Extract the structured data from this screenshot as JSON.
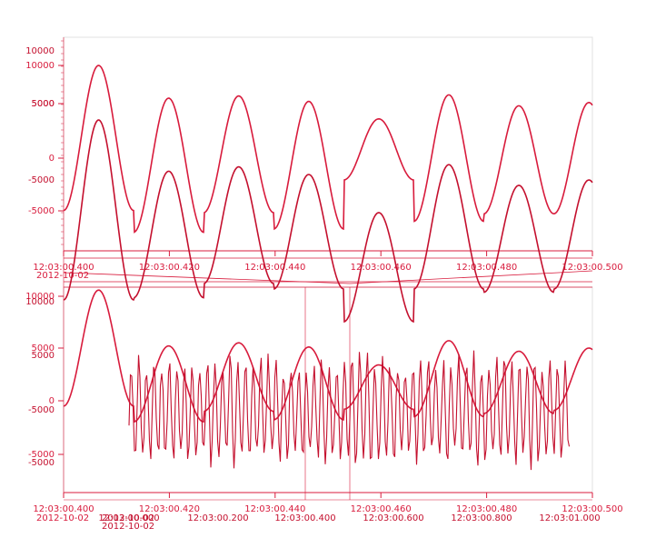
{
  "colors": {
    "primary": "#d81b3c",
    "secondary": "#c4102e",
    "frame": "#e0e0e0"
  },
  "chart_data": [
    {
      "type": "line",
      "x_unit": "time",
      "date_label": "2012-10-02",
      "xlim": [
        "12:03:00.400",
        "12:03:00.500"
      ],
      "x_ticks": [
        "12:03:00.400",
        "12:03:00.420",
        "12:03:00.440",
        "12:03:00.460",
        "12:03:00.480",
        "12:03:00.500"
      ],
      "y_ticks": [
        "10000",
        "5000",
        "0",
        "-5000"
      ],
      "y_ticks_secondary": [
        "10000",
        "5000",
        "-5000"
      ],
      "ylim": [
        -9000,
        11000
      ],
      "series": [
        {
          "role": "upper",
          "peaks": [
            8500,
            5500,
            5700,
            5200,
            3600,
            5800,
            4800,
            5100
          ],
          "troughs": [
            -4800,
            -6800,
            -5000,
            -6500,
            -2000,
            -5800,
            -5100,
            -5100
          ]
        },
        {
          "role": "lower",
          "peaks": [
            3500,
            -1200,
            -800,
            -1500,
            -5000,
            -600,
            -2500,
            -2000
          ],
          "troughs": [
            -13000,
            -12800,
            -11500,
            -12000,
            -15000,
            -12000,
            -12300,
            -12000
          ]
        }
      ]
    },
    {
      "type": "line",
      "x_unit": "time",
      "date_label": "2012-10-02",
      "xlim": [
        "12:03:00.400",
        "12:03:00.500"
      ],
      "x_ticks_primary": [
        "12:03:00.400",
        "12:03:00.420",
        "12:03:00.440",
        "12:03:00.460",
        "12:03:00.480",
        "12:03:00.500"
      ],
      "x_ticks_secondary": [
        "12:03:00.000",
        "12:03:00.200",
        "12:03:00.400",
        "12:03:00.600",
        "12:03:00.800",
        "12:03:01.000"
      ],
      "y_ticks": [
        "10000",
        "5000",
        "0",
        "-5000"
      ],
      "y_ticks_secondary": [
        "10000",
        "5000",
        "-5000"
      ],
      "ylim": [
        -9000,
        11000
      ],
      "series": [
        {
          "role": "upper",
          "peaks": [
            10500,
            5200,
            5500,
            5100,
            3400,
            5700,
            4700,
            5000
          ],
          "troughs": [
            -500,
            -2000,
            -1000,
            -1800,
            -800,
            -1500,
            -1200,
            -900
          ]
        },
        {
          "role": "noise",
          "amplitude": [
            -6800,
            4900
          ]
        }
      ]
    }
  ]
}
